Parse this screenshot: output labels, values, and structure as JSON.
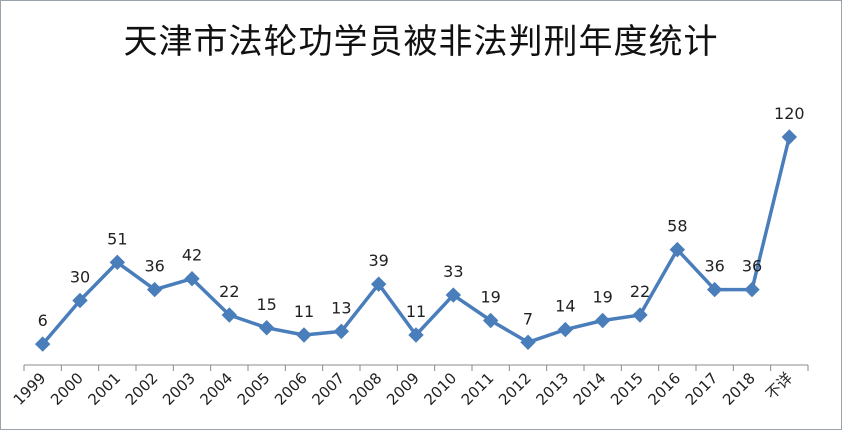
{
  "chart_data": {
    "type": "line",
    "title": "天津市法轮功学员被非法判刑年度统计",
    "xlabel": "",
    "ylabel": "",
    "categories": [
      "1999",
      "2000",
      "2001",
      "2002",
      "2003",
      "2004",
      "2005",
      "2006",
      "2007",
      "2008",
      "2009",
      "2010",
      "2011",
      "2012",
      "2013",
      "2014",
      "2015",
      "2016",
      "2017",
      "2018",
      "不详"
    ],
    "series": [
      {
        "values": [
          6,
          30,
          51,
          36,
          42,
          22,
          15,
          11,
          13,
          39,
          11,
          33,
          19,
          7,
          14,
          19,
          22,
          58,
          36,
          36,
          120
        ]
      }
    ],
    "ylim": [
      0,
      130
    ],
    "grid": false,
    "legend": "none",
    "colors": {
      "line": "#4a7ebb",
      "marker": "#4a7ebb",
      "axis": "#8c8c8c"
    }
  }
}
